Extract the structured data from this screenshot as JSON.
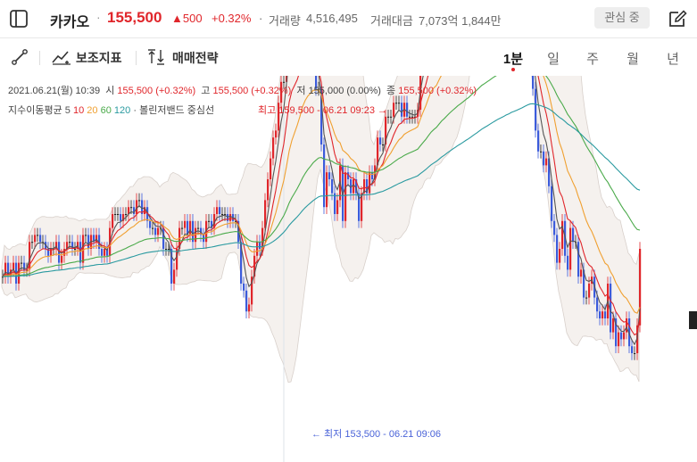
{
  "header": {
    "name": "카카오",
    "separator": "·",
    "price": "155,500",
    "change": "▲500",
    "change_pct": "+0.32%",
    "volume_label": "거래량",
    "volume": "4,516,495",
    "value_label": "거래대금",
    "value": "7,073억 1,844만",
    "watch_label": "관심 중"
  },
  "toolbar": {
    "indicators_label": "보조지표",
    "strategy_label": "매매전략",
    "periods": [
      "1분",
      "일",
      "주",
      "월",
      "년"
    ],
    "active_period": "1분"
  },
  "info": {
    "date": "2021.06.21(월) 10:39",
    "open_label": "시",
    "open": "155,500 (+0.32%)",
    "high_label": "고",
    "high": "155,500 (+0.32%)",
    "low_label": "저",
    "low": "155,000 (0.00%)",
    "close_label": "종",
    "close": "155,500 (+0.32%)"
  },
  "indicators": {
    "ma_label": "지수이동평균",
    "ma_periods": [
      {
        "value": "5",
        "color": "#555555"
      },
      {
        "value": "10",
        "color": "#e0262b"
      },
      {
        "value": "20",
        "color": "#f0a030"
      },
      {
        "value": "60",
        "color": "#4aaa4a"
      },
      {
        "value": "120",
        "color": "#2a9aa0"
      }
    ],
    "bb_label": "볼린저밴드 중심선",
    "separator": "·"
  },
  "annotations": {
    "high": "최고 159,500 - 06.21 09:23 →",
    "low": "← 최저 153,500 - 06.21 09:06"
  },
  "chart_data": {
    "type": "candlestick",
    "interval": "1분",
    "high_marker": "159,500",
    "low_marker": "153,500",
    "last_price": "155,500",
    "colors": {
      "up": "#e0262b",
      "down": "#3b5bdb",
      "doji": "#222222"
    },
    "closes": [
      155100,
      155300,
      155100,
      155200,
      155300,
      155000,
      155300,
      155300,
      155200,
      155200,
      155600,
      155600,
      155700,
      155700,
      155600,
      155600,
      155500,
      155400,
      155500,
      155500,
      155600,
      155300,
      155400,
      155500,
      155600,
      155600,
      155500,
      155500,
      155600,
      155300,
      155700,
      155700,
      155500,
      155700,
      155600,
      155700,
      155500,
      155400,
      155500,
      155400,
      155800,
      156000,
      156000,
      156000,
      155900,
      156000,
      156000,
      156100,
      156100,
      156000,
      156200,
      156200,
      156000,
      156100,
      155900,
      155800,
      155800,
      155700,
      155800,
      155800,
      155500,
      155500,
      155500,
      155000,
      155200,
      155500,
      155800,
      155800,
      155900,
      155700,
      155900,
      155600,
      155800,
      155800,
      155700,
      155600,
      155900,
      155900,
      155800,
      156000,
      156100,
      156000,
      156000,
      156000,
      155900,
      156000,
      155900,
      155900,
      155600,
      155000,
      154900,
      154600,
      154700,
      155100,
      155400,
      155600,
      155500,
      155800,
      156200,
      156500,
      156800,
      157100,
      157200,
      157600,
      157900,
      157900,
      158600,
      159000,
      158500,
      158200,
      158300,
      158600,
      158900,
      158500,
      158300,
      158100,
      158200,
      157800,
      157800,
      157000,
      156100,
      156600,
      156500,
      156300,
      156000,
      156200,
      156700,
      155900,
      156600,
      156500,
      156300,
      156500,
      156300,
      155900,
      156300,
      156500,
      156300,
      156600,
      156500,
      156700,
      157100,
      157000,
      157000,
      157400,
      157400,
      157400,
      157600,
      157600,
      157600,
      157400,
      157600,
      157400,
      157400,
      157400,
      157400,
      157500,
      158400,
      158400,
      158400,
      158700,
      158700,
      158300,
      158200,
      158700,
      158700,
      158400,
      158600,
      158600,
      158500,
      158500,
      158600,
      158400,
      158500,
      158600,
      158500,
      158800,
      158800,
      158700,
      158900,
      158900,
      158600,
      158700,
      158700,
      158800,
      158700,
      158700,
      158500,
      158500,
      158800,
      158400,
      158800,
      158300,
      158500,
      158600,
      158500,
      158800,
      158700,
      158500,
      157800,
      157200,
      156900,
      156900,
      156700,
      156800,
      156400,
      155900,
      155700,
      155300,
      155500,
      155900,
      155400,
      155200,
      155800,
      155600,
      155600,
      155100,
      155200,
      154800,
      154800,
      155000,
      155100,
      154800,
      154600,
      154500,
      154600,
      154500,
      155000,
      154300,
      154500,
      154100,
      154300,
      154200,
      154300,
      154500,
      154100,
      154000,
      154000,
      154400,
      155500
    ]
  }
}
